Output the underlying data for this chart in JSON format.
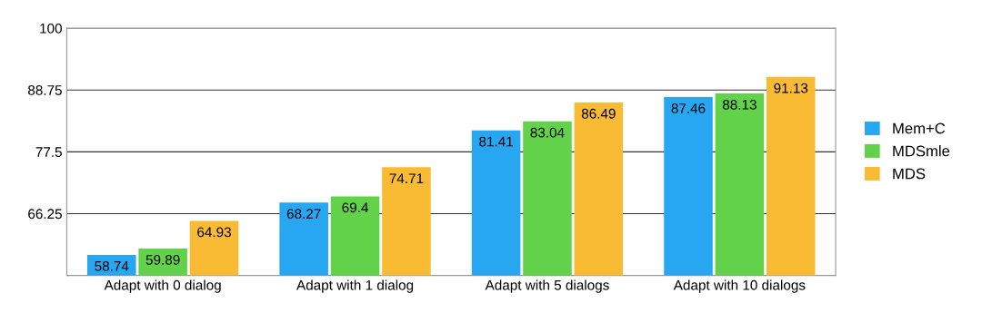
{
  "chart_data": {
    "type": "bar",
    "categories": [
      "Adapt with 0 dialog",
      "Adapt with 1 dialog",
      "Adapt with 5 dialogs",
      "Adapt with 10 dialogs"
    ],
    "series": [
      {
        "name": "Mem+C",
        "color": "#27a7f2",
        "values": [
          58.74,
          68.27,
          81.41,
          87.46
        ]
      },
      {
        "name": "MDSmle",
        "color": "#62d24a",
        "values": [
          59.89,
          69.4,
          83.04,
          88.13
        ]
      },
      {
        "name": "MDS",
        "color": "#f8bb33",
        "values": [
          64.93,
          74.71,
          86.49,
          91.13
        ]
      }
    ],
    "ylim": [
      55,
      100
    ],
    "yticks": [
      66.25,
      77.5,
      88.75,
      100
    ],
    "grid": "y",
    "legend": "right",
    "data_labels": true
  }
}
